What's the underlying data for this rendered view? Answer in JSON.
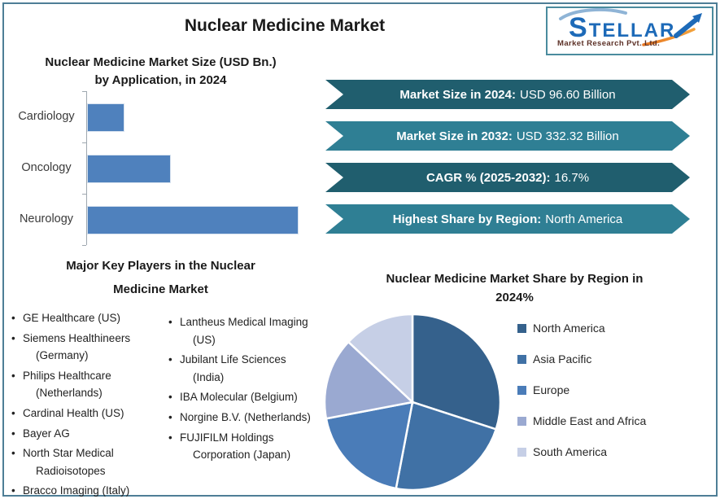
{
  "page": {
    "title": "Nuclear Medicine Market",
    "frame_color": "#4e7e96"
  },
  "logo": {
    "brand": "STELLAR",
    "subtitle": "Market Research Pvt. Ltd.",
    "brand_color": "#1d6ab8",
    "swoosh_color": "#8fb4d6",
    "arrow_blue": "#1d6ab8",
    "arrow_orange": "#e87722"
  },
  "banners": [
    {
      "label": "Market Size in 2024:",
      "value": "USD 96.60 Billion",
      "bg": "#205e6e"
    },
    {
      "label": "Market Size in 2032:",
      "value": "USD 332.32 Billion",
      "bg": "#2f7f94"
    },
    {
      "label": "CAGR % (2025-2032):",
      "value": "16.7%",
      "bg": "#205e6e"
    },
    {
      "label": "Highest Share by Region:",
      "value": "North America",
      "bg": "#2f7f94"
    }
  ],
  "key_players": {
    "heading": "Major Key Players in the Nuclear Medicine Market",
    "column1": [
      "GE Healthcare (US)",
      "Siemens Healthineers (Germany)",
      "Philips Healthcare (Netherlands)",
      "Cardinal Health (US)",
      "Bayer AG",
      "North Star Medical Radioisotopes",
      "Bracco Imaging (Italy)"
    ],
    "column2": [
      "Lantheus Medical Imaging (US)",
      "Jubilant Life Sciences (India)",
      "IBA Molecular (Belgium)",
      "Norgine B.V. (Netherlands)",
      "FUJIFILM Holdings Corporation (Japan)"
    ]
  },
  "chart_data": [
    {
      "type": "bar",
      "orientation": "horizontal",
      "title": "Nuclear Medicine Market Size (USD Bn.) by Application, in 2024",
      "categories": [
        "Cardiology",
        "Oncology",
        "Neurology"
      ],
      "values": [
        17,
        39,
        100
      ],
      "unit": "relative bar length (axis scale not shown)",
      "bar_color": "#4f81bd",
      "xlabel": "",
      "ylabel": "",
      "grid": false
    },
    {
      "type": "pie",
      "title": "Nuclear Medicine Market Share by Region in 2024%",
      "labels": [
        "North America",
        "Asia Pacific",
        "Europe",
        "Middle East and Africa",
        "South America"
      ],
      "values": [
        30,
        23,
        19,
        15,
        13
      ],
      "unit": "% share (estimated from slice angles)",
      "colors": [
        "#35618c",
        "#4071a5",
        "#4a7cb8",
        "#9aa9d1",
        "#c6cfe6"
      ],
      "start_angle": "top",
      "direction": "clockwise",
      "legend_position": "right"
    }
  ]
}
